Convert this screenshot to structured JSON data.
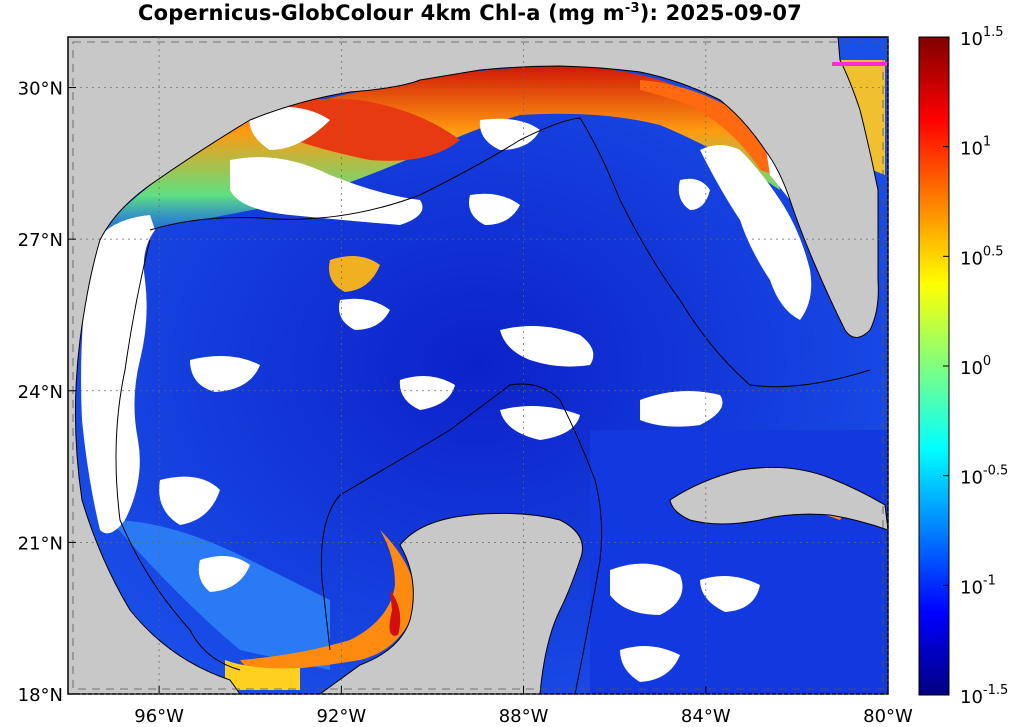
{
  "title": {
    "prefix": "Copernicus-GlobColour 4km Chl-a (mg m",
    "sup": "-3",
    "suffix": "): 2025-09-07"
  },
  "map": {
    "lon_range": [
      -98,
      -80
    ],
    "lat_range": [
      18,
      31
    ],
    "lon_ticks": [
      {
        "value": -96,
        "label": "96°W"
      },
      {
        "value": -92,
        "label": "92°W"
      },
      {
        "value": -88,
        "label": "88°W"
      },
      {
        "value": -84,
        "label": "84°W"
      },
      {
        "value": -80,
        "label": "80°W"
      }
    ],
    "lat_ticks": [
      {
        "value": 30,
        "label": "30°N"
      },
      {
        "value": 27,
        "label": "27°N"
      },
      {
        "value": 24,
        "label": "24°N"
      },
      {
        "value": 21,
        "label": "21°N"
      },
      {
        "value": 18,
        "label": "18°N"
      }
    ],
    "colors": {
      "land": "#c8c8c8",
      "ocean_deep": "#0a28d8",
      "ocean_mid": "#1e5cf0",
      "cloud": "#ffffff",
      "coastal_high": "#e83010",
      "marker": "#ff2bd6"
    }
  },
  "colorbar": {
    "scale": "log10",
    "range": [
      -1.5,
      1.5
    ],
    "ticks": [
      {
        "base": "10",
        "exp": "1.5",
        "value": 1.5
      },
      {
        "base": "10",
        "exp": "1",
        "value": 1
      },
      {
        "base": "10",
        "exp": "0.5",
        "value": 0.5
      },
      {
        "base": "10",
        "exp": "0",
        "value": 0
      },
      {
        "base": "10",
        "exp": "-0.5",
        "value": -0.5
      },
      {
        "base": "10",
        "exp": "-1",
        "value": -1
      },
      {
        "base": "10",
        "exp": "-1.5",
        "value": -1.5
      }
    ],
    "gradient": [
      "#000080",
      "#0000ff",
      "#0080ff",
      "#00ffff",
      "#80ff80",
      "#ffff00",
      "#ff8000",
      "#ff0000",
      "#800000"
    ]
  }
}
